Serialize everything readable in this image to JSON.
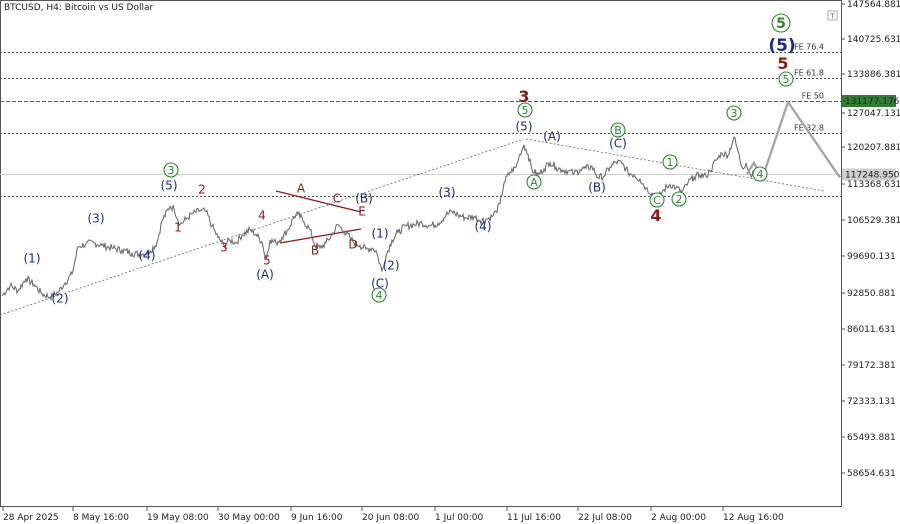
{
  "header": {
    "title": "BTCUSD, H4:  Bitcoin vs US Dollar"
  },
  "colors": {
    "navy": "#1e2a8c",
    "green": "#2e8b2e",
    "red": "#8b1a1a",
    "grey": "#a6a6a6",
    "price": "#6f6f6f",
    "fe50": "#2e7d32",
    "currentBg": "#cfcfcf"
  },
  "chart_data": {
    "type": "line",
    "symbol": "BTCUSD",
    "timeframe": "H4",
    "ylim": [
      53500,
      150000
    ],
    "x_ticks": [
      "28 Apr 2025",
      "8 May 16:00",
      "19 May 08:00",
      "30 May 00:00",
      "9 Jun 16:00",
      "20 Jun 08:00",
      "1 Jul 00:00",
      "11 Jul 16:00",
      "22 Jul 08:00",
      "2 Aug 00:00",
      "12 Aug 16:00"
    ],
    "y_ticks": [
      "147564.881",
      "140725.631",
      "133886.381",
      "127047.131",
      "120207.881",
      "113368.631",
      "106529.381",
      "99690.131",
      "92850.881",
      "86011.631",
      "79172.381",
      "72333.131",
      "65493.881",
      "58654.631"
    ],
    "levels": [
      {
        "label": "FE 76.4",
        "value": 140600
      },
      {
        "label": "FE 61.8",
        "value": 135600
      },
      {
        "label": "FE 50",
        "value": 131177.176
      },
      {
        "label": "FE 32.8",
        "value": 125000
      },
      {
        "label": "",
        "value": 113000
      }
    ],
    "fe50_label": "131177.176",
    "current_price": 117248.95,
    "current_label": "117248.950",
    "price_series": [
      {
        "i": 0,
        "v": 93800
      },
      {
        "i": 8,
        "v": 95800
      },
      {
        "i": 16,
        "v": 94800
      },
      {
        "i": 24,
        "v": 97200
      },
      {
        "i": 32,
        "v": 96000
      },
      {
        "i": 40,
        "v": 94200
      },
      {
        "i": 48,
        "v": 93600
      },
      {
        "i": 56,
        "v": 94500
      },
      {
        "i": 63,
        "v": 96300
      },
      {
        "i": 70,
        "v": 98000
      },
      {
        "i": 76,
        "v": 103200
      },
      {
        "i": 84,
        "v": 103800
      },
      {
        "i": 92,
        "v": 104000
      },
      {
        "i": 100,
        "v": 103500
      },
      {
        "i": 110,
        "v": 103000
      },
      {
        "i": 120,
        "v": 102600
      },
      {
        "i": 130,
        "v": 102000
      },
      {
        "i": 140,
        "v": 101800
      },
      {
        "i": 148,
        "v": 102400
      },
      {
        "i": 155,
        "v": 104000
      },
      {
        "i": 160,
        "v": 108200
      },
      {
        "i": 168,
        "v": 111000
      },
      {
        "i": 172,
        "v": 110600
      },
      {
        "i": 178,
        "v": 107500
      },
      {
        "i": 184,
        "v": 108500
      },
      {
        "i": 190,
        "v": 109500
      },
      {
        "i": 198,
        "v": 110200
      },
      {
        "i": 204,
        "v": 110000
      },
      {
        "i": 210,
        "v": 107200
      },
      {
        "i": 216,
        "v": 105000
      },
      {
        "i": 222,
        "v": 103500
      },
      {
        "i": 228,
        "v": 104500
      },
      {
        "i": 234,
        "v": 104000
      },
      {
        "i": 240,
        "v": 105500
      },
      {
        "i": 248,
        "v": 106500
      },
      {
        "i": 254,
        "v": 105600
      },
      {
        "i": 260,
        "v": 104200
      },
      {
        "i": 264,
        "v": 100800
      },
      {
        "i": 268,
        "v": 104500
      },
      {
        "i": 274,
        "v": 104000
      },
      {
        "i": 280,
        "v": 105000
      },
      {
        "i": 286,
        "v": 106500
      },
      {
        "i": 292,
        "v": 109000
      },
      {
        "i": 296,
        "v": 109500
      },
      {
        "i": 302,
        "v": 108000
      },
      {
        "i": 308,
        "v": 106500
      },
      {
        "i": 313,
        "v": 103500
      },
      {
        "i": 318,
        "v": 103000
      },
      {
        "i": 324,
        "v": 104000
      },
      {
        "i": 330,
        "v": 105500
      },
      {
        "i": 336,
        "v": 107500
      },
      {
        "i": 342,
        "v": 106200
      },
      {
        "i": 348,
        "v": 105000
      },
      {
        "i": 352,
        "v": 104000
      },
      {
        "i": 358,
        "v": 103500
      },
      {
        "i": 364,
        "v": 102800
      },
      {
        "i": 370,
        "v": 103000
      },
      {
        "i": 374,
        "v": 102500
      },
      {
        "i": 380,
        "v": 98500
      },
      {
        "i": 384,
        "v": 101500
      },
      {
        "i": 390,
        "v": 104500
      },
      {
        "i": 396,
        "v": 106000
      },
      {
        "i": 404,
        "v": 107200
      },
      {
        "i": 412,
        "v": 107500
      },
      {
        "i": 420,
        "v": 107800
      },
      {
        "i": 428,
        "v": 107300
      },
      {
        "i": 436,
        "v": 107700
      },
      {
        "i": 444,
        "v": 109300
      },
      {
        "i": 450,
        "v": 110000
      },
      {
        "i": 456,
        "v": 109300
      },
      {
        "i": 464,
        "v": 108800
      },
      {
        "i": 472,
        "v": 109000
      },
      {
        "i": 478,
        "v": 108300
      },
      {
        "i": 484,
        "v": 108500
      },
      {
        "i": 490,
        "v": 109000
      },
      {
        "i": 494,
        "v": 110000
      },
      {
        "i": 498,
        "v": 111500
      },
      {
        "i": 502,
        "v": 115500
      },
      {
        "i": 508,
        "v": 117500
      },
      {
        "i": 514,
        "v": 118500
      },
      {
        "i": 518,
        "v": 121000
      },
      {
        "i": 522,
        "v": 122800
      },
      {
        "i": 526,
        "v": 121000
      },
      {
        "i": 530,
        "v": 118000
      },
      {
        "i": 536,
        "v": 117000
      },
      {
        "i": 542,
        "v": 118200
      },
      {
        "i": 548,
        "v": 119500
      },
      {
        "i": 554,
        "v": 118500
      },
      {
        "i": 560,
        "v": 118000
      },
      {
        "i": 566,
        "v": 117800
      },
      {
        "i": 572,
        "v": 117300
      },
      {
        "i": 578,
        "v": 118000
      },
      {
        "i": 584,
        "v": 118300
      },
      {
        "i": 590,
        "v": 118600
      },
      {
        "i": 596,
        "v": 116500
      },
      {
        "i": 602,
        "v": 116800
      },
      {
        "i": 608,
        "v": 118500
      },
      {
        "i": 614,
        "v": 119500
      },
      {
        "i": 620,
        "v": 119200
      },
      {
        "i": 626,
        "v": 117500
      },
      {
        "i": 632,
        "v": 117000
      },
      {
        "i": 638,
        "v": 116200
      },
      {
        "i": 644,
        "v": 114500
      },
      {
        "i": 650,
        "v": 113500
      },
      {
        "i": 656,
        "v": 112500
      },
      {
        "i": 662,
        "v": 114200
      },
      {
        "i": 668,
        "v": 115200
      },
      {
        "i": 674,
        "v": 114600
      },
      {
        "i": 680,
        "v": 113700
      },
      {
        "i": 686,
        "v": 115500
      },
      {
        "i": 692,
        "v": 116600
      },
      {
        "i": 698,
        "v": 117000
      },
      {
        "i": 704,
        "v": 116800
      },
      {
        "i": 708,
        "v": 117800
      },
      {
        "i": 714,
        "v": 119800
      },
      {
        "i": 720,
        "v": 121200
      },
      {
        "i": 726,
        "v": 120800
      },
      {
        "i": 732,
        "v": 124300
      },
      {
        "i": 736,
        "v": 121500
      },
      {
        "i": 740,
        "v": 118500
      },
      {
        "i": 744,
        "v": 119200
      },
      {
        "i": 748,
        "v": 117300
      },
      {
        "i": 752,
        "v": 117200
      }
    ],
    "projection": [
      {
        "i": 745,
        "v": 117200
      },
      {
        "i": 752,
        "v": 119400
      },
      {
        "i": 760,
        "v": 116200
      },
      {
        "i": 786,
        "v": 131000
      },
      {
        "i": 838,
        "v": 116500
      }
    ],
    "wave_labels": [
      {
        "text": "(1)",
        "style": "navy"
      },
      {
        "text": "(2)",
        "style": "navy"
      },
      {
        "text": "(3)",
        "style": "navy"
      },
      {
        "text": "(4)",
        "style": "navy"
      },
      {
        "text": "(5)",
        "style": "navy"
      },
      {
        "text": "3",
        "style": "green-circle"
      },
      {
        "text": "1",
        "style": "red"
      },
      {
        "text": "2",
        "style": "red"
      },
      {
        "text": "3",
        "style": "red"
      },
      {
        "text": "4",
        "style": "red"
      },
      {
        "text": "5",
        "style": "red"
      },
      {
        "text": "(A)",
        "style": "navy"
      },
      {
        "text": "A",
        "style": "red"
      },
      {
        "text": "B",
        "style": "red"
      },
      {
        "text": "C",
        "style": "red"
      },
      {
        "text": "D",
        "style": "red"
      },
      {
        "text": "E",
        "style": "red"
      },
      {
        "text": "(B)",
        "style": "navy"
      },
      {
        "text": "(1)",
        "style": "navy"
      },
      {
        "text": "(2)",
        "style": "navy"
      },
      {
        "text": "(C)",
        "style": "navy"
      },
      {
        "text": "4",
        "style": "green-circle"
      },
      {
        "text": "(3)",
        "style": "navy"
      },
      {
        "text": "(4)",
        "style": "navy"
      },
      {
        "text": "3",
        "style": "red-big"
      },
      {
        "text": "5",
        "style": "green-circle"
      },
      {
        "text": "(5)",
        "style": "navy"
      },
      {
        "text": "A",
        "style": "green-circle"
      },
      {
        "text": "(A)",
        "style": "navy"
      },
      {
        "text": "(B)",
        "style": "navy"
      },
      {
        "text": "B",
        "style": "green-circle"
      },
      {
        "text": "(C)",
        "style": "navy"
      },
      {
        "text": "C",
        "style": "green-circle"
      },
      {
        "text": "4",
        "style": "red-big"
      },
      {
        "text": "1",
        "style": "green-circle"
      },
      {
        "text": "2",
        "style": "green-circle"
      },
      {
        "text": "3",
        "style": "green-circle"
      },
      {
        "text": "4",
        "style": "green-circle"
      },
      {
        "text": "5",
        "style": "green-circle"
      },
      {
        "text": "5",
        "style": "red-big"
      },
      {
        "text": "(5)",
        "style": "navy-big"
      },
      {
        "text": "5",
        "style": "green-circle-big"
      }
    ]
  }
}
